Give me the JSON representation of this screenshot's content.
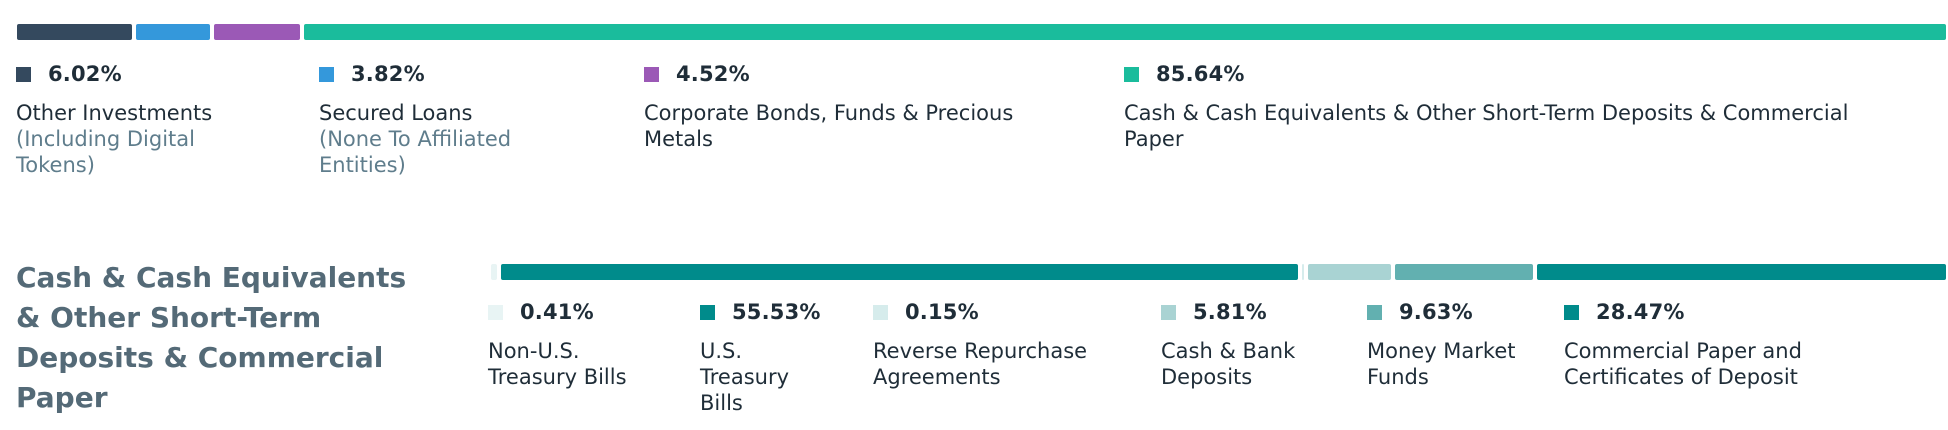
{
  "chart_data": [
    {
      "type": "bar",
      "orientation": "stacked-horizontal-100",
      "segments": [
        {
          "value": 6.02,
          "label": "6.02%",
          "name": "Other Investments",
          "subname": "(Including Digital Tokens)",
          "color": "#34495e"
        },
        {
          "value": 3.82,
          "label": "3.82%",
          "name": "Secured Loans",
          "subname": "(None To Affiliated Entities)",
          "color": "#3498db"
        },
        {
          "value": 4.52,
          "label": "4.52%",
          "name": "Corporate Bonds, Funds & Precious Metals",
          "subname": "",
          "color": "#9b59b6"
        },
        {
          "value": 85.64,
          "label": "85.64%",
          "name": "Cash & Cash Equivalents & Other Short-Term Deposits & Commercial Paper",
          "subname": "",
          "color": "#1abc9c"
        }
      ]
    },
    {
      "type": "bar",
      "orientation": "stacked-horizontal-100",
      "title": "Cash & Cash Equivalents & Other Short-Term Deposits & Commercial Paper",
      "segments": [
        {
          "value": 0.41,
          "label": "0.41%",
          "name": "Non-U.S. Treasury Bills",
          "color": "#e8f4f4"
        },
        {
          "value": 55.53,
          "label": "55.53%",
          "name": "U.S. Treasury Bills",
          "color": "#008b8b"
        },
        {
          "value": 0.15,
          "label": "0.15%",
          "name": "Reverse Repurchase Agreements",
          "color": "#d6ecec"
        },
        {
          "value": 5.81,
          "label": "5.81%",
          "name": "Cash & Bank Deposits",
          "color": "#a9d3d3"
        },
        {
          "value": 9.63,
          "label": "9.63%",
          "name": "Money Market Funds",
          "color": "#62b0b0"
        },
        {
          "value": 28.47,
          "label": "28.47%",
          "name": "Commercial Paper and Certificates of Deposit",
          "color": "#008b8b"
        }
      ]
    }
  ]
}
